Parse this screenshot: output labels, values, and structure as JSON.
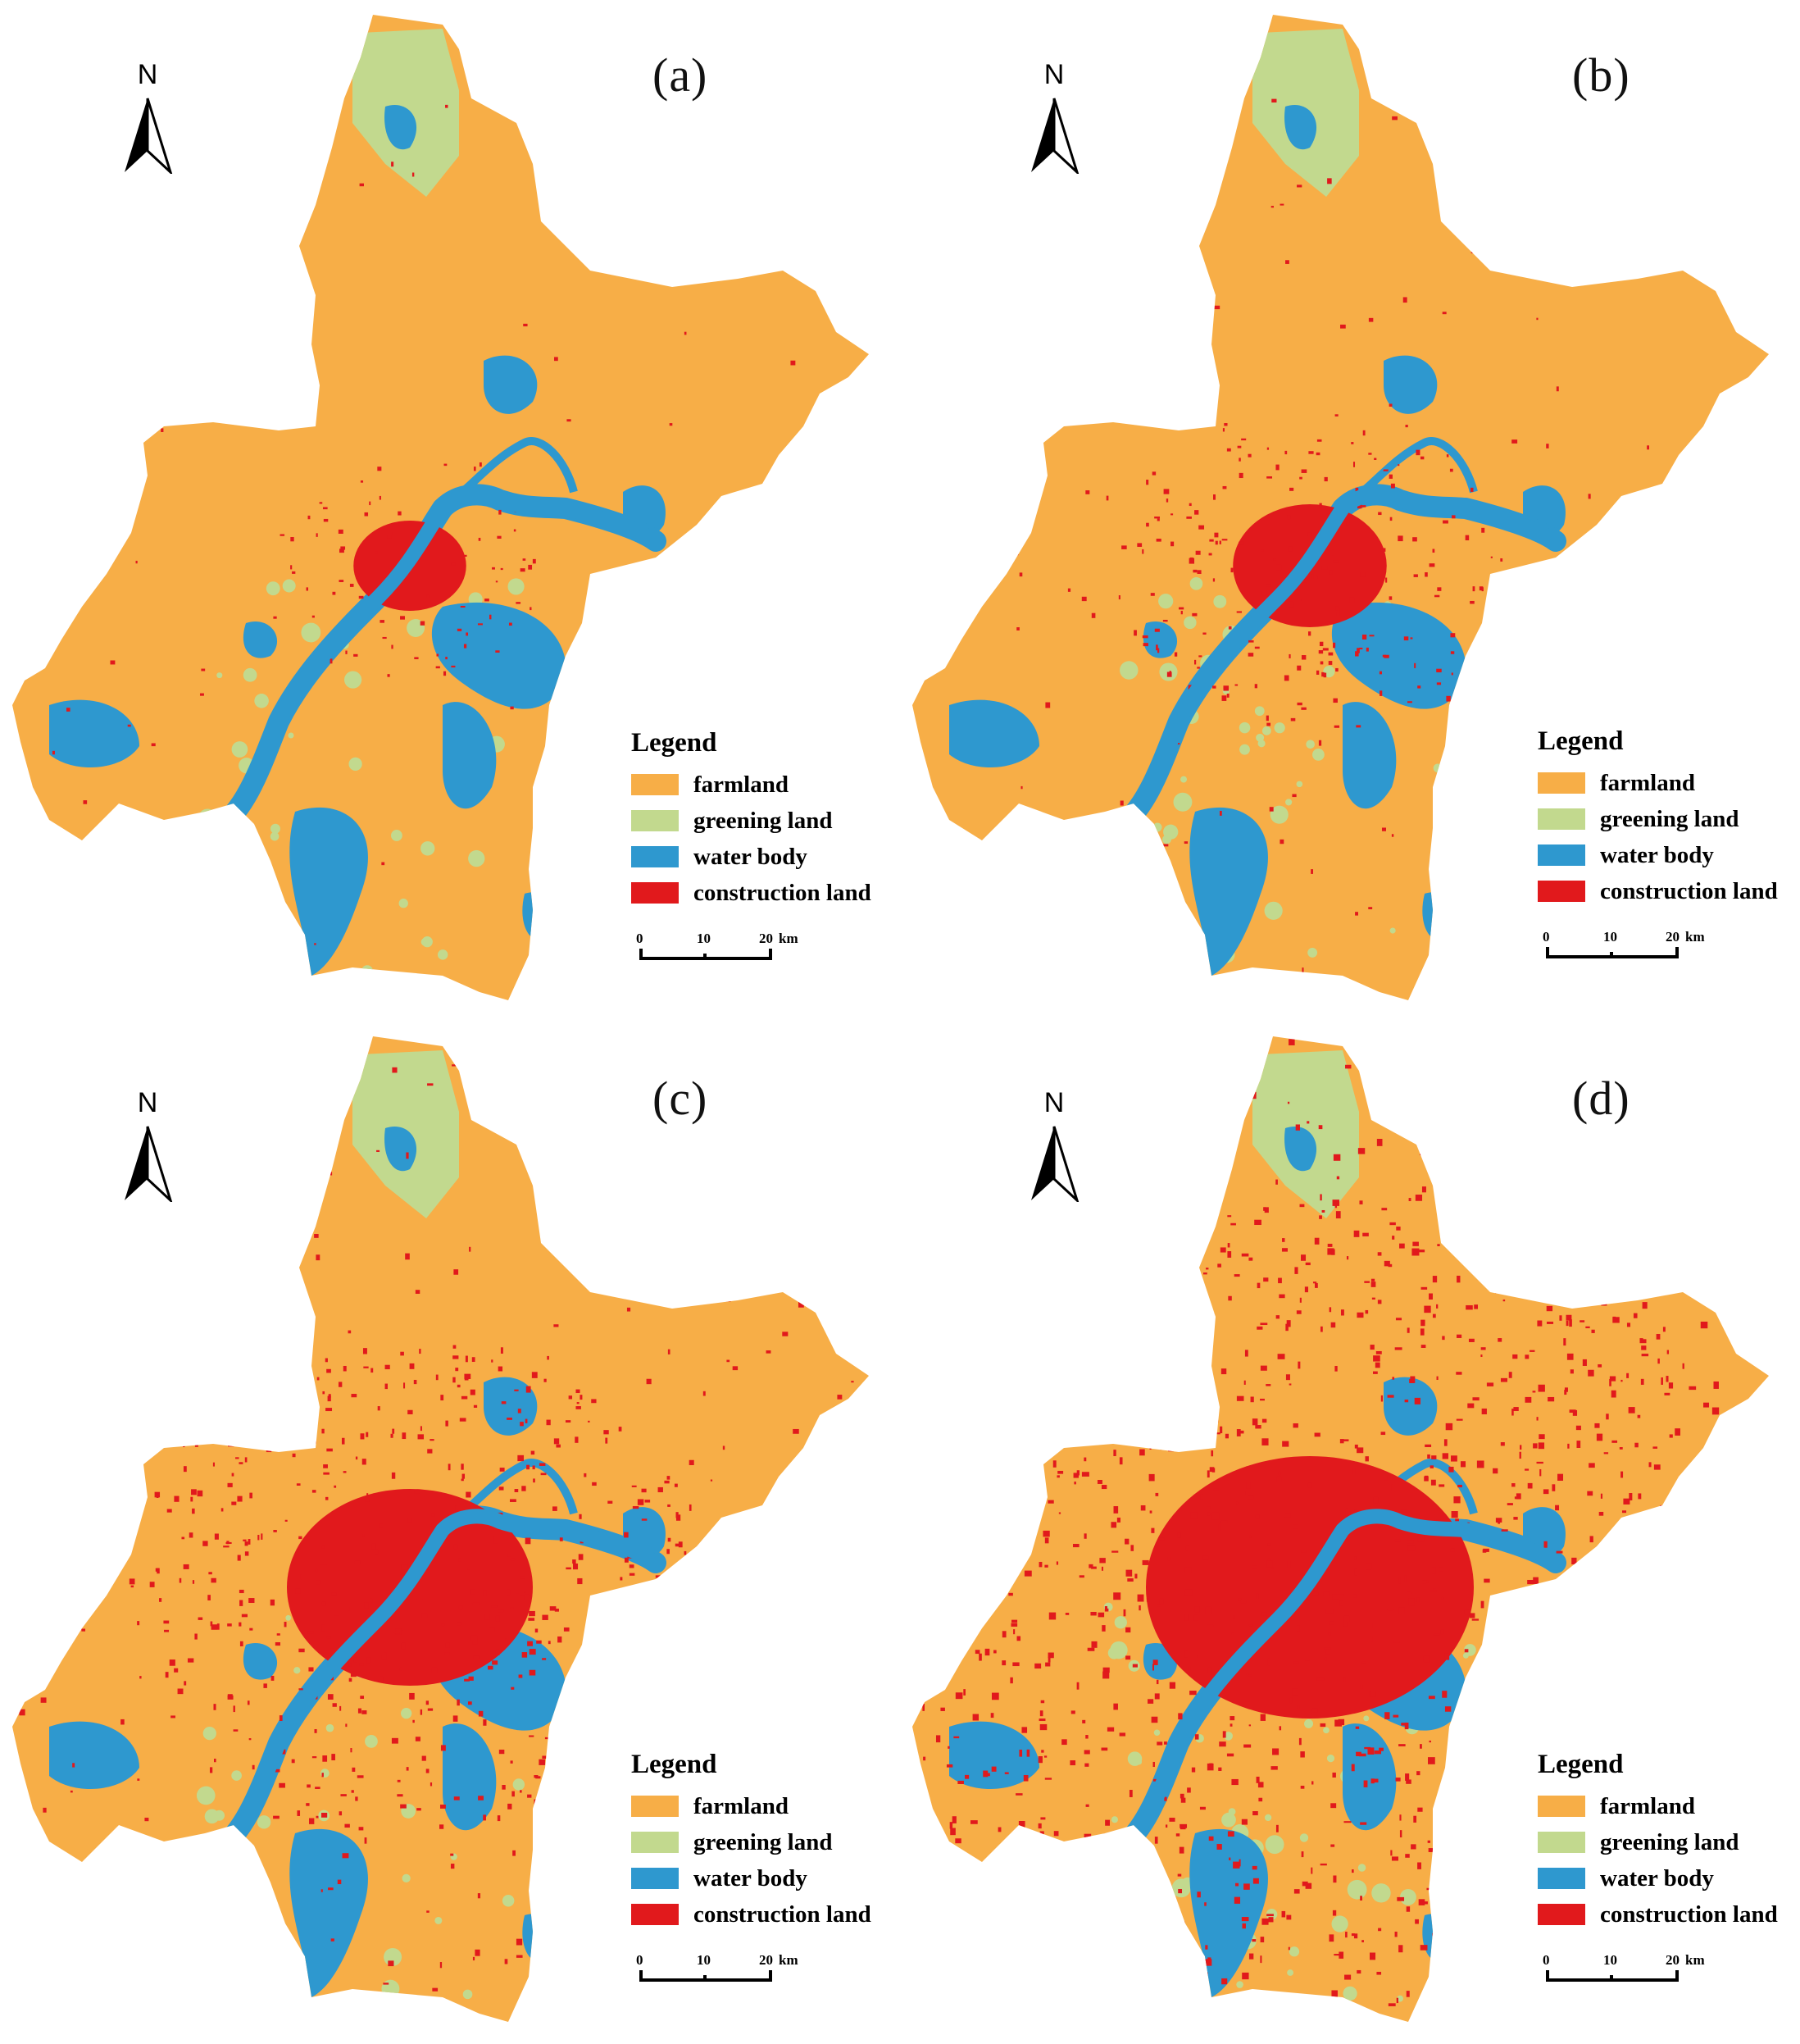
{
  "legend": {
    "title": "Legend",
    "items": [
      {
        "key": "farmland",
        "label": "farmland",
        "color": "#F7AE47"
      },
      {
        "key": "greening",
        "label": "greening land",
        "color": "#C2D98E"
      },
      {
        "key": "water",
        "label": "water body",
        "color": "#2E98CF"
      },
      {
        "key": "construction",
        "label": "construction land",
        "color": "#E1191C"
      }
    ]
  },
  "north_label": "N",
  "scale": {
    "tick0": "0",
    "tick1": "10",
    "tick2": "20",
    "unit": "km"
  },
  "panels": [
    {
      "label": "(a)",
      "urban_level": 1,
      "greening_level": 1
    },
    {
      "label": "(b)",
      "urban_level": 2,
      "greening_level": 1
    },
    {
      "label": "(c)",
      "urban_level": 3,
      "greening_level": 1
    },
    {
      "label": "(d)",
      "urban_level": 4,
      "greening_level": 2
    }
  ]
}
